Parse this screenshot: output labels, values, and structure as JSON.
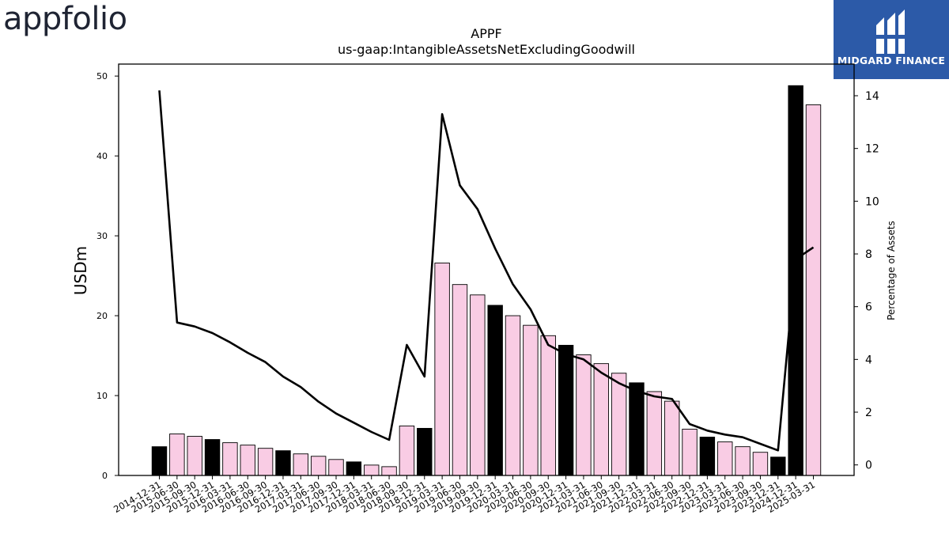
{
  "logos": {
    "left": "appfolio",
    "right": "MIDGARD FINANCE"
  },
  "chart_data": {
    "type": "bar",
    "title": "APPF",
    "subtitle": "us-gaap:IntangibleAssetsNetExcludingGoodwill",
    "ylabel": "USDm",
    "y2label": "Percentage of Assets",
    "ylim": [
      0,
      51.5
    ],
    "y2lim": [
      -0.4,
      15.2
    ],
    "yticks": [
      0,
      10,
      20,
      30,
      40,
      50
    ],
    "y2ticks": [
      0,
      2,
      4,
      6,
      8,
      10,
      12,
      14
    ],
    "grid": false,
    "categories": [
      "2014-12-31",
      "2015-06-30",
      "2015-09-30",
      "2015-12-31",
      "2016-03-31",
      "2016-06-30",
      "2016-09-30",
      "2016-12-31",
      "2017-03-31",
      "2017-06-30",
      "2017-09-30",
      "2017-12-31",
      "2018-03-31",
      "2018-06-30",
      "2018-09-30",
      "2018-12-31",
      "2019-03-31",
      "2019-06-30",
      "2019-09-30",
      "2019-12-31",
      "2020-03-31",
      "2020-06-30",
      "2020-09-30",
      "2020-12-31",
      "2021-03-31",
      "2021-06-30",
      "2021-09-30",
      "2021-12-31",
      "2022-03-31",
      "2022-06-30",
      "2022-09-30",
      "2022-12-31",
      "2023-03-31",
      "2023-06-30",
      "2023-09-30",
      "2023-12-31",
      "2024-12-31",
      "2025-03-31"
    ],
    "series": [
      {
        "kind": "bar",
        "axis": "left",
        "values": [
          3.6,
          5.2,
          4.9,
          4.5,
          4.1,
          3.8,
          3.4,
          3.1,
          2.7,
          2.4,
          2.0,
          1.7,
          1.3,
          1.1,
          6.2,
          5.9,
          26.6,
          23.9,
          22.6,
          21.3,
          20.0,
          18.8,
          17.5,
          16.3,
          15.1,
          14.0,
          12.8,
          11.6,
          10.5,
          9.3,
          5.8,
          4.8,
          4.2,
          3.6,
          2.9,
          2.3,
          48.8,
          46.4
        ],
        "colors": [
          "#000000",
          "#f9cce4",
          "#f9cce4",
          "#000000",
          "#f9cce4",
          "#f9cce4",
          "#f9cce4",
          "#000000",
          "#f9cce4",
          "#f9cce4",
          "#f9cce4",
          "#000000",
          "#f9cce4",
          "#f9cce4",
          "#f9cce4",
          "#000000",
          "#f9cce4",
          "#f9cce4",
          "#f9cce4",
          "#000000",
          "#f9cce4",
          "#f9cce4",
          "#f9cce4",
          "#000000",
          "#f9cce4",
          "#f9cce4",
          "#f9cce4",
          "#000000",
          "#f9cce4",
          "#f9cce4",
          "#f9cce4",
          "#000000",
          "#f9cce4",
          "#f9cce4",
          "#f9cce4",
          "#000000",
          "#000000",
          "#f9cce4"
        ]
      },
      {
        "kind": "line",
        "axis": "right",
        "color": "#000000",
        "values": [
          14.2,
          5.4,
          5.25,
          5.0,
          4.65,
          4.25,
          3.9,
          3.35,
          2.95,
          2.4,
          1.95,
          1.6,
          1.25,
          0.95,
          4.55,
          3.35,
          13.3,
          10.6,
          9.7,
          8.2,
          6.85,
          5.9,
          4.55,
          4.2,
          4.0,
          3.5,
          3.1,
          2.8,
          2.6,
          2.5,
          1.55,
          1.3,
          1.15,
          1.05,
          0.8,
          0.55,
          7.8,
          8.25
        ]
      }
    ]
  }
}
